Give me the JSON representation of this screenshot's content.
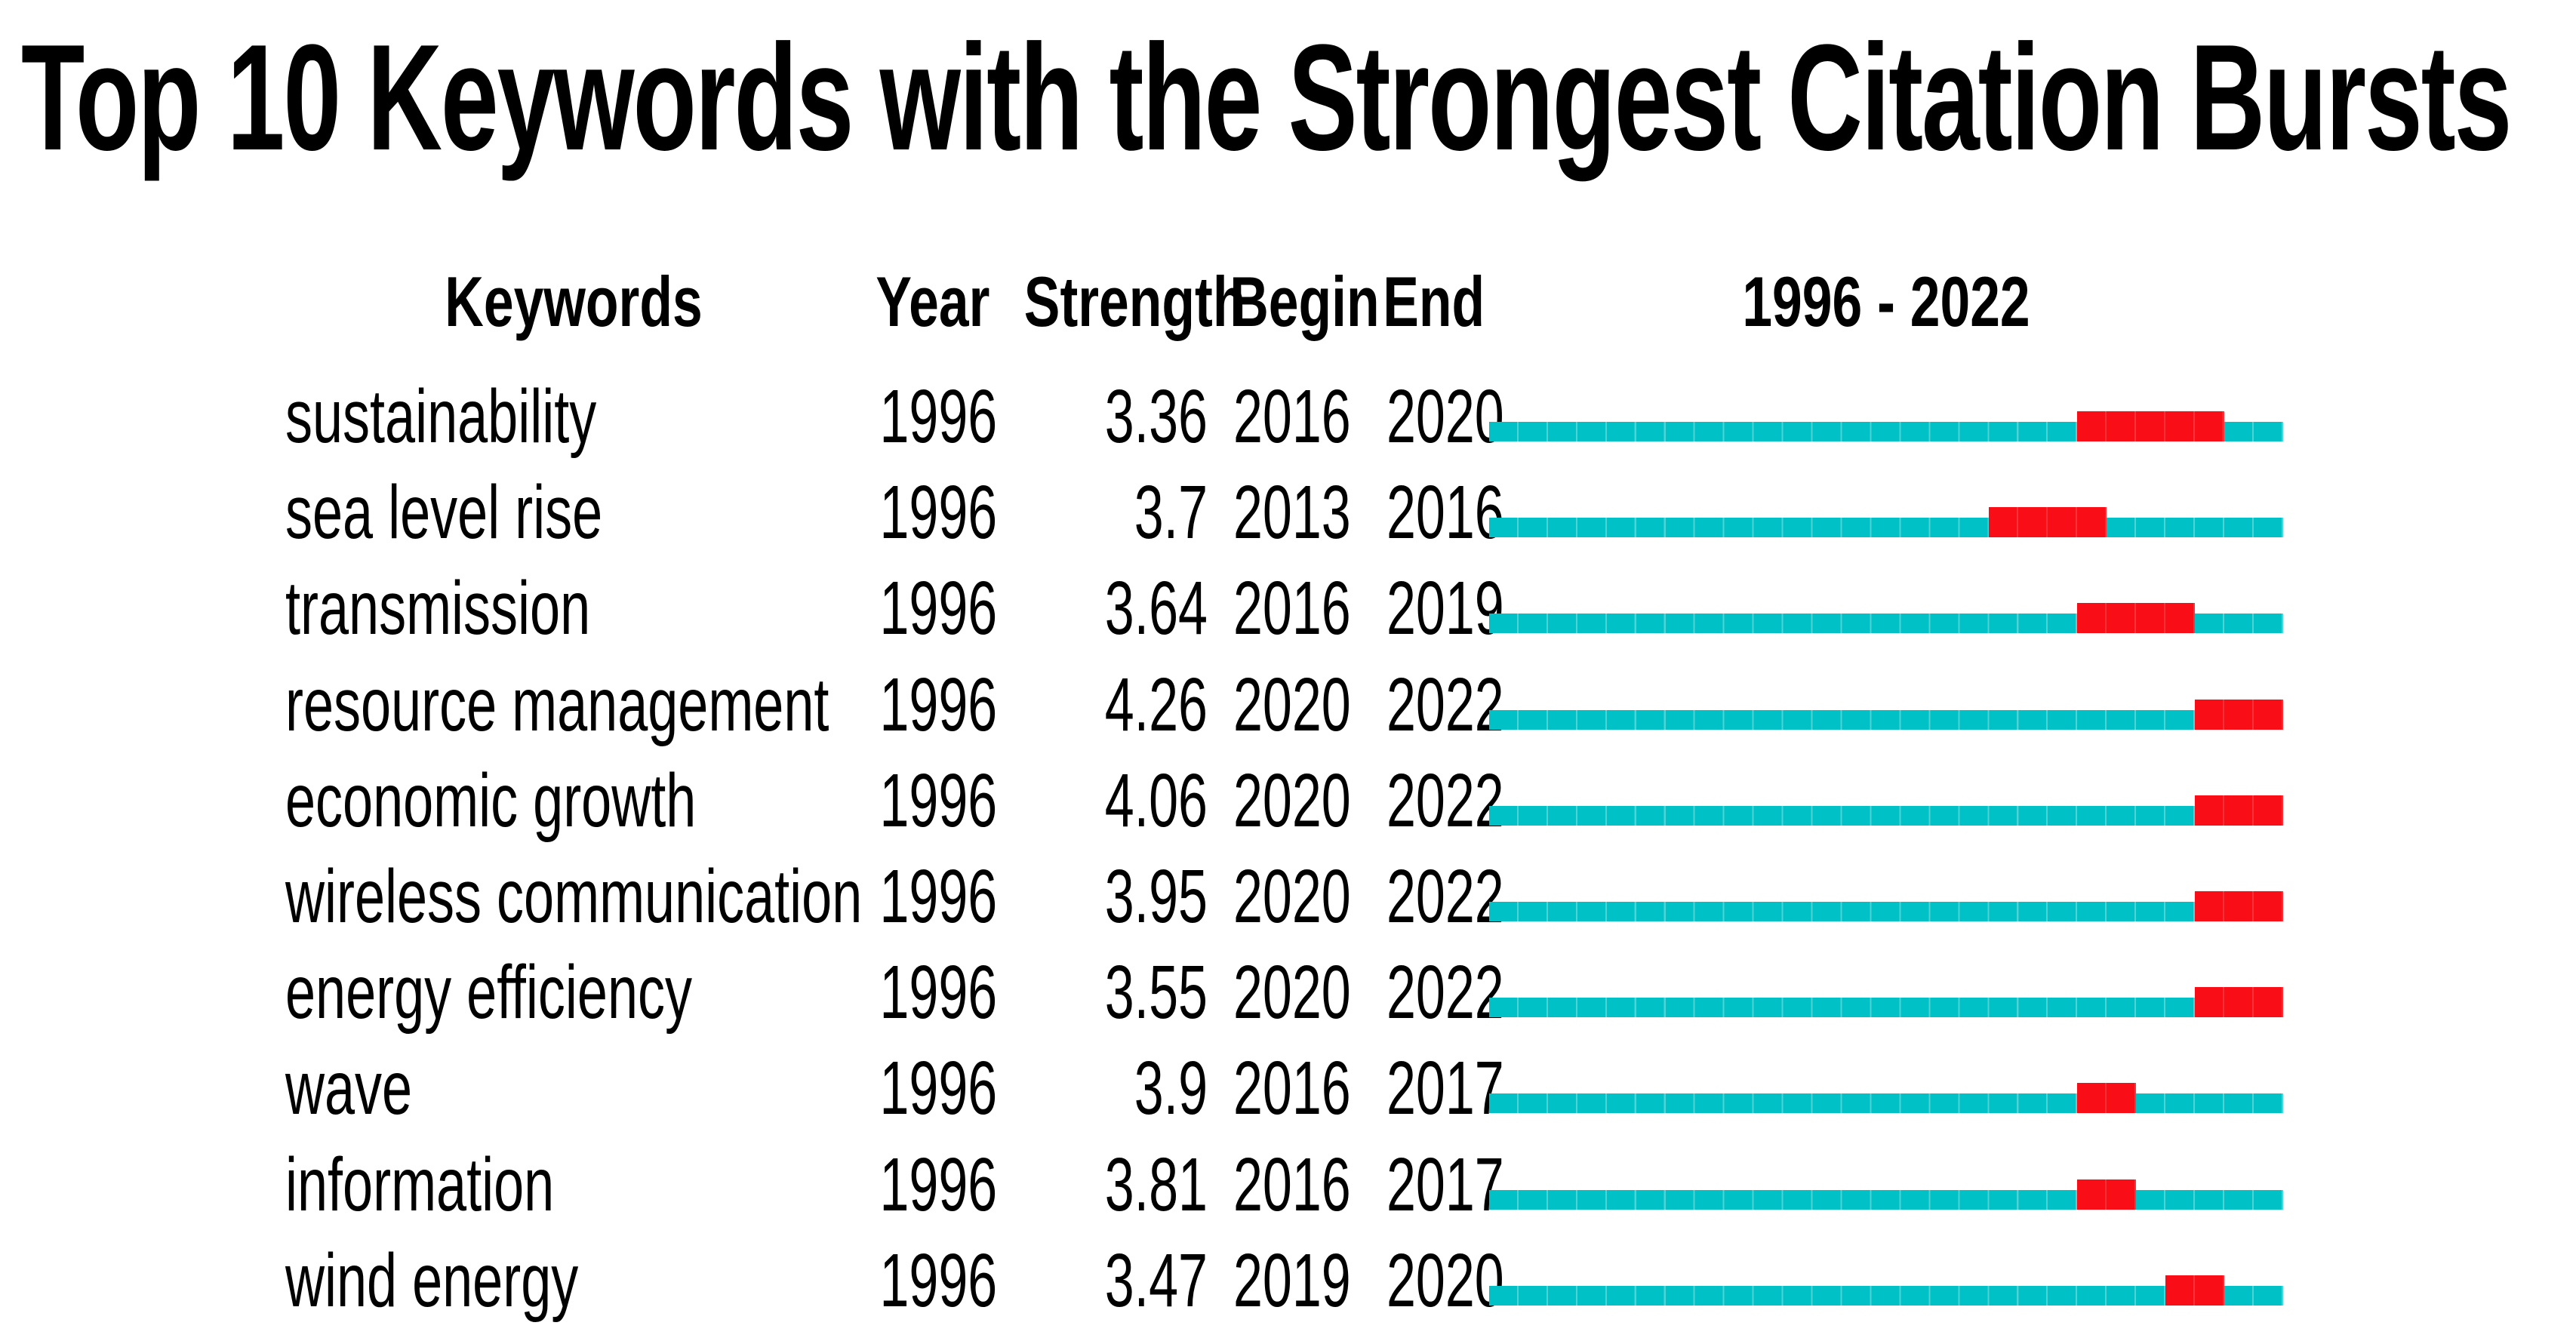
{
  "title": "Top 10 Keywords with the Strongest Citation Bursts",
  "headers": {
    "keywords": "Keywords",
    "year": "Year",
    "strength": "Strength",
    "begin": "Begin",
    "end": "End",
    "timeline": "1996 - 2022"
  },
  "colors": {
    "track": "#00C1C5",
    "burst": "#F90D17",
    "text": "#000000",
    "background": "#FFFFFF"
  },
  "chart_data": {
    "type": "table",
    "title": "Top 10 Keywords with the Strongest Citation Bursts",
    "subtitle": "",
    "columns": [
      "Keywords",
      "Year",
      "Strength",
      "Begin",
      "End",
      "1996 - 2022"
    ],
    "timeline_start_year": 1996,
    "timeline_end_year": 2022,
    "track_color": "#00C1C5",
    "burst_color": "#F90D17",
    "rows": [
      {
        "keyword": "sustainability",
        "year": "1996",
        "strength": "3.36",
        "begin": 2016,
        "end": 2020
      },
      {
        "keyword": "sea level rise",
        "year": "1996",
        "strength": "3.7",
        "begin": 2013,
        "end": 2016
      },
      {
        "keyword": "transmission",
        "year": "1996",
        "strength": "3.64",
        "begin": 2016,
        "end": 2019
      },
      {
        "keyword": "resource management",
        "year": "1996",
        "strength": "4.26",
        "begin": 2020,
        "end": 2022
      },
      {
        "keyword": "economic growth",
        "year": "1996",
        "strength": "4.06",
        "begin": 2020,
        "end": 2022
      },
      {
        "keyword": "wireless communication",
        "year": "1996",
        "strength": "3.95",
        "begin": 2020,
        "end": 2022
      },
      {
        "keyword": "energy efficiency",
        "year": "1996",
        "strength": "3.55",
        "begin": 2020,
        "end": 2022
      },
      {
        "keyword": "wave",
        "year": "1996",
        "strength": "3.9",
        "begin": 2016,
        "end": 2017
      },
      {
        "keyword": "information",
        "year": "1996",
        "strength": "3.81",
        "begin": 2016,
        "end": 2017
      },
      {
        "keyword": "wind energy",
        "year": "1996",
        "strength": "3.47",
        "begin": 2019,
        "end": 2020
      }
    ]
  }
}
